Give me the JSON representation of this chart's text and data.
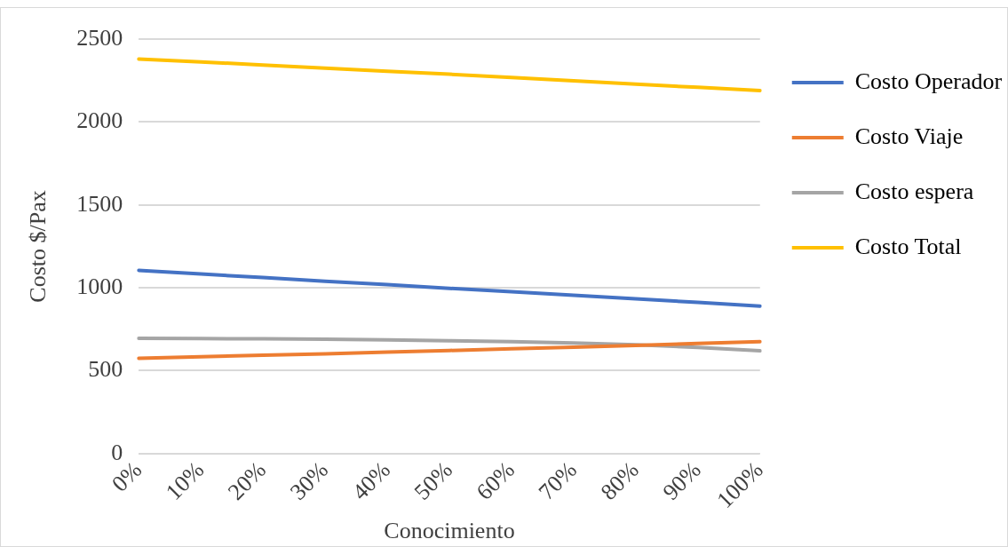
{
  "chart_data": {
    "type": "line",
    "xlabel": "Conocimiento",
    "ylabel": "Costo $/Pax",
    "categories": [
      "0%",
      "10%",
      "20%",
      "30%",
      "40%",
      "50%",
      "60%",
      "70%",
      "80%",
      "90%",
      "100%"
    ],
    "series": [
      {
        "name": "Costo Operador",
        "color": "#4472c4",
        "values": [
          1105,
          1083,
          1062,
          1040,
          1019,
          997,
          976,
          955,
          933,
          912,
          890
        ]
      },
      {
        "name": "Costo Viaje",
        "color": "#ed7d31",
        "values": [
          575,
          584,
          593,
          602,
          612,
          622,
          632,
          642,
          653,
          664,
          675
        ]
      },
      {
        "name": "Costo espera",
        "color": "#a5a5a5",
        "values": [
          695,
          694,
          692,
          690,
          686,
          681,
          675,
          667,
          657,
          640,
          620
        ]
      },
      {
        "name": "Costo Total",
        "color": "#ffc000",
        "values": [
          2380,
          2362,
          2344,
          2325,
          2306,
          2288,
          2268,
          2248,
          2228,
          2209,
          2190
        ]
      }
    ],
    "ylim": [
      0,
      2500
    ],
    "yticks": [
      0,
      500,
      1000,
      1500,
      2000,
      2500
    ],
    "grid": "y",
    "legend": "right",
    "marker": "none",
    "line_style": "solid"
  }
}
